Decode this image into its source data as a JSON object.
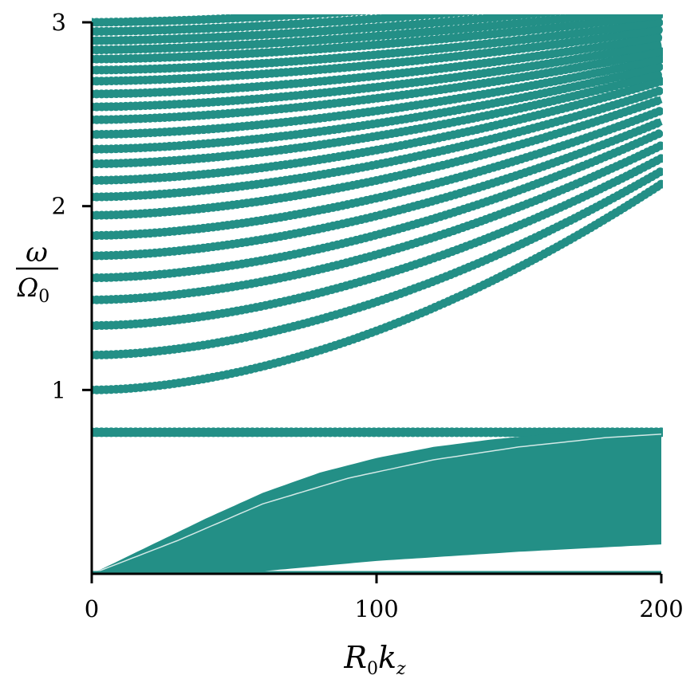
{
  "chart_data": {
    "type": "scatter",
    "color": "#238f86",
    "xlabel": {
      "main": "R",
      "sub1": "0",
      "main2": "k",
      "sub2": "z"
    },
    "ylabel": {
      "numerator": "ω",
      "denominator": "Ω",
      "den_sub": "0"
    },
    "xlim": [
      0,
      200
    ],
    "ylim": [
      0,
      3
    ],
    "xticks": [
      {
        "value": 0,
        "label": "0"
      },
      {
        "value": 100,
        "label": "100"
      },
      {
        "value": 200,
        "label": "200"
      }
    ],
    "yticks": [
      {
        "value": 1,
        "label": "1"
      },
      {
        "value": 2,
        "label": "2"
      },
      {
        "value": 3,
        "label": "3"
      }
    ],
    "upper_branch_count": 23,
    "upper_branch_start_omega": [
      1.0,
      1.19,
      1.35,
      1.49,
      1.61,
      1.73,
      1.84,
      1.95,
      2.05,
      2.14,
      2.23,
      2.31,
      2.39,
      2.47,
      2.54,
      2.61,
      2.68,
      2.74,
      2.8,
      2.85,
      2.9,
      2.95,
      3.0
    ],
    "upper_branch_end_omega": [
      2.12,
      2.19,
      2.26,
      2.33,
      2.4,
      2.46,
      2.52,
      2.58,
      2.63,
      2.68,
      2.72,
      2.76,
      2.8,
      2.84,
      2.88,
      2.92,
      2.96,
      3.0,
      3.04,
      3.08,
      3.12,
      3.16,
      3.2
    ],
    "flat_band_omega": 0.77,
    "low_band_top_x": [
      0,
      20,
      40,
      60,
      80,
      100,
      120,
      140,
      160,
      180,
      200
    ],
    "low_band_top_y": [
      0,
      0.15,
      0.3,
      0.44,
      0.55,
      0.63,
      0.69,
      0.73,
      0.76,
      0.77,
      0.78
    ],
    "low_band_bottom_x": [
      0,
      50,
      100,
      150,
      200
    ],
    "low_band_bottom_y": [
      0,
      0.0,
      0.07,
      0.12,
      0.16
    ],
    "low_band_secondary_x": [
      0,
      30,
      60,
      90,
      120,
      150,
      180,
      200
    ],
    "low_band_secondary_y": [
      0,
      0.18,
      0.38,
      0.52,
      0.62,
      0.69,
      0.74,
      0.76
    ],
    "bottom_line_omega": 0.0
  }
}
